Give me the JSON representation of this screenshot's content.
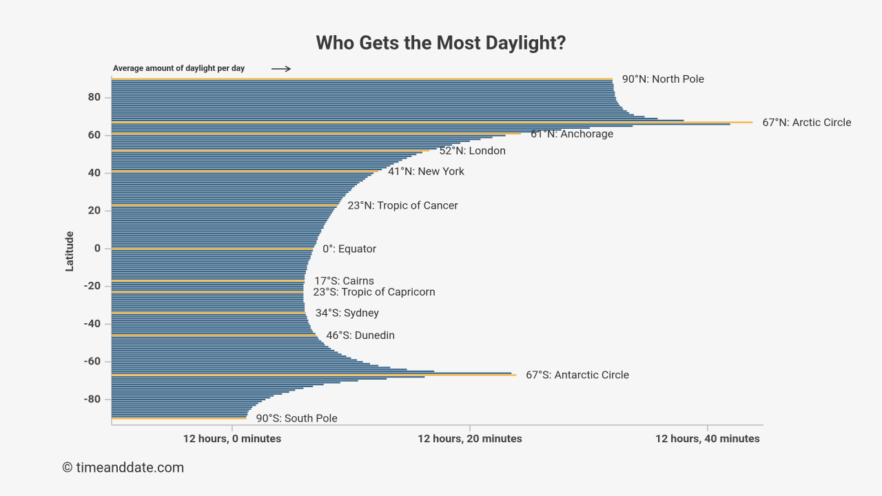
{
  "chart_data": {
    "type": "hbar",
    "title": "Who Gets the Most Daylight?",
    "x_annotation": "Average amount of daylight per day",
    "ylabel": "Latitude",
    "source": "© timeanddate.com",
    "color": "#3b6688",
    "highlight_color": "#f2b33d",
    "xlim": [
      709.86,
      764.7
    ],
    "xticks": [
      {
        "value": 720,
        "label": "12 hours, 0 minutes"
      },
      {
        "value": 740,
        "label": "12 hours, 20 minutes"
      },
      {
        "value": 760,
        "label": "12 hours, 40 minutes"
      }
    ],
    "ylim": [
      -93.5,
      91.7
    ],
    "yticks": [
      80,
      60,
      40,
      20,
      0,
      -20,
      -40,
      -60,
      -80
    ],
    "y": [
      90,
      89,
      88,
      87,
      86,
      85,
      84,
      83,
      82,
      81,
      80,
      79,
      78,
      77,
      76,
      75,
      74,
      73,
      72,
      71,
      70,
      69,
      68,
      67,
      66,
      65,
      64,
      63,
      62,
      61,
      60,
      59,
      58,
      57,
      56,
      55,
      54,
      53,
      52,
      51,
      50,
      49,
      48,
      47,
      46,
      45,
      44,
      43,
      42,
      41,
      40,
      39,
      38,
      37,
      36,
      35,
      34,
      33,
      32,
      31,
      30,
      29,
      28,
      27,
      26,
      25,
      24,
      23,
      22,
      21,
      20,
      19,
      18,
      17,
      16,
      15,
      14,
      13,
      12,
      11,
      10,
      9,
      8,
      7,
      6,
      5,
      4,
      3,
      2,
      1,
      0,
      -1,
      -2,
      -3,
      -4,
      -5,
      -6,
      -7,
      -8,
      -9,
      -10,
      -11,
      -12,
      -13,
      -14,
      -15,
      -16,
      -17,
      -18,
      -19,
      -20,
      -21,
      -22,
      -23,
      -24,
      -25,
      -26,
      -27,
      -28,
      -29,
      -30,
      -31,
      -32,
      -33,
      -34,
      -35,
      -36,
      -37,
      -38,
      -39,
      -40,
      -41,
      -42,
      -43,
      -44,
      -45,
      -46,
      -47,
      -48,
      -49,
      -50,
      -51,
      -52,
      -53,
      -54,
      -55,
      -56,
      -57,
      -58,
      -59,
      -60,
      -61,
      -62,
      -63,
      -64,
      -65,
      -66,
      -67,
      -68,
      -69,
      -70,
      -71,
      -72,
      -73,
      -74,
      -75,
      -76,
      -77,
      -78,
      -79,
      -80,
      -81,
      -82,
      -83,
      -84,
      -85,
      -86,
      -87,
      -88,
      -89,
      -90
    ],
    "values": [
      752.0,
      752.0,
      752.0,
      752.1,
      752.1,
      752.1,
      752.1,
      752.2,
      752.2,
      752.2,
      752.3,
      752.3,
      752.4,
      752.5,
      752.6,
      752.8,
      752.9,
      753.2,
      753.4,
      753.8,
      754.7,
      755.8,
      758.0,
      763.8,
      761.9,
      753.7,
      750.1,
      747.7,
      745.8,
      744.3,
      743.0,
      741.9,
      740.9,
      740.0,
      739.2,
      738.5,
      737.9,
      737.2,
      736.6,
      736.0,
      735.5,
      735.1,
      734.7,
      734.3,
      734.0,
      733.6,
      733.3,
      733.0,
      732.6,
      732.3,
      731.9,
      731.7,
      731.4,
      731.2,
      731.0,
      730.7,
      730.5,
      730.3,
      730.1,
      730.0,
      729.8,
      729.6,
      729.5,
      729.3,
      729.2,
      729.1,
      729.0,
      728.9,
      728.8,
      728.6,
      728.5,
      728.4,
      728.3,
      728.2,
      728.1,
      728.0,
      727.9,
      727.8,
      727.7,
      727.7,
      727.5,
      727.5,
      727.4,
      727.3,
      727.2,
      727.2,
      727.1,
      727.1,
      727.0,
      726.9,
      726.8,
      726.8,
      726.7,
      726.7,
      726.6,
      726.6,
      726.5,
      726.4,
      726.4,
      726.3,
      726.3,
      726.3,
      726.2,
      726.2,
      726.1,
      726.1,
      726.1,
      726.1,
      726.1,
      726.0,
      726.0,
      726.0,
      726.0,
      726.0,
      726.0,
      726.0,
      726.0,
      726.0,
      726.0,
      726.1,
      726.1,
      726.1,
      726.1,
      726.1,
      726.2,
      726.2,
      726.3,
      726.3,
      726.4,
      726.4,
      726.5,
      726.6,
      726.6,
      726.7,
      726.8,
      727.0,
      727.1,
      727.2,
      727.3,
      727.5,
      727.7,
      727.8,
      728.1,
      728.3,
      728.6,
      728.9,
      729.2,
      729.6,
      730.0,
      730.5,
      731.0,
      731.6,
      732.3,
      733.3,
      734.7,
      737.0,
      743.5,
      743.9,
      736.2,
      733.0,
      730.6,
      729.1,
      727.7,
      726.8,
      726.0,
      725.3,
      724.8,
      724.2,
      723.5,
      723.2,
      722.8,
      722.5,
      722.2,
      722.0,
      721.7,
      721.6,
      721.4,
      721.3,
      721.3,
      721.2,
      721.2
    ],
    "annotations": [
      {
        "y": 90,
        "text": "90°N: North Pole"
      },
      {
        "y": 67,
        "text": "67°N: Arctic Circle"
      },
      {
        "y": 61,
        "text": "61°N: Anchorage"
      },
      {
        "y": 52,
        "text": "52°N: London"
      },
      {
        "y": 41,
        "text": "41°N: New York"
      },
      {
        "y": 23,
        "text": "23°N: Tropic of Cancer"
      },
      {
        "y": 0,
        "text": "0°: Equator"
      },
      {
        "y": -17,
        "text": "17°S: Cairns"
      },
      {
        "y": -23,
        "text": "23°S: Tropic of Capricorn"
      },
      {
        "y": -34,
        "text": "34°S: Sydney"
      },
      {
        "y": -46,
        "text": "46°S: Dunedin"
      },
      {
        "y": -67,
        "text": "67°S: Antarctic Circle"
      },
      {
        "y": -90,
        "text": "90°S: South Pole"
      }
    ]
  }
}
